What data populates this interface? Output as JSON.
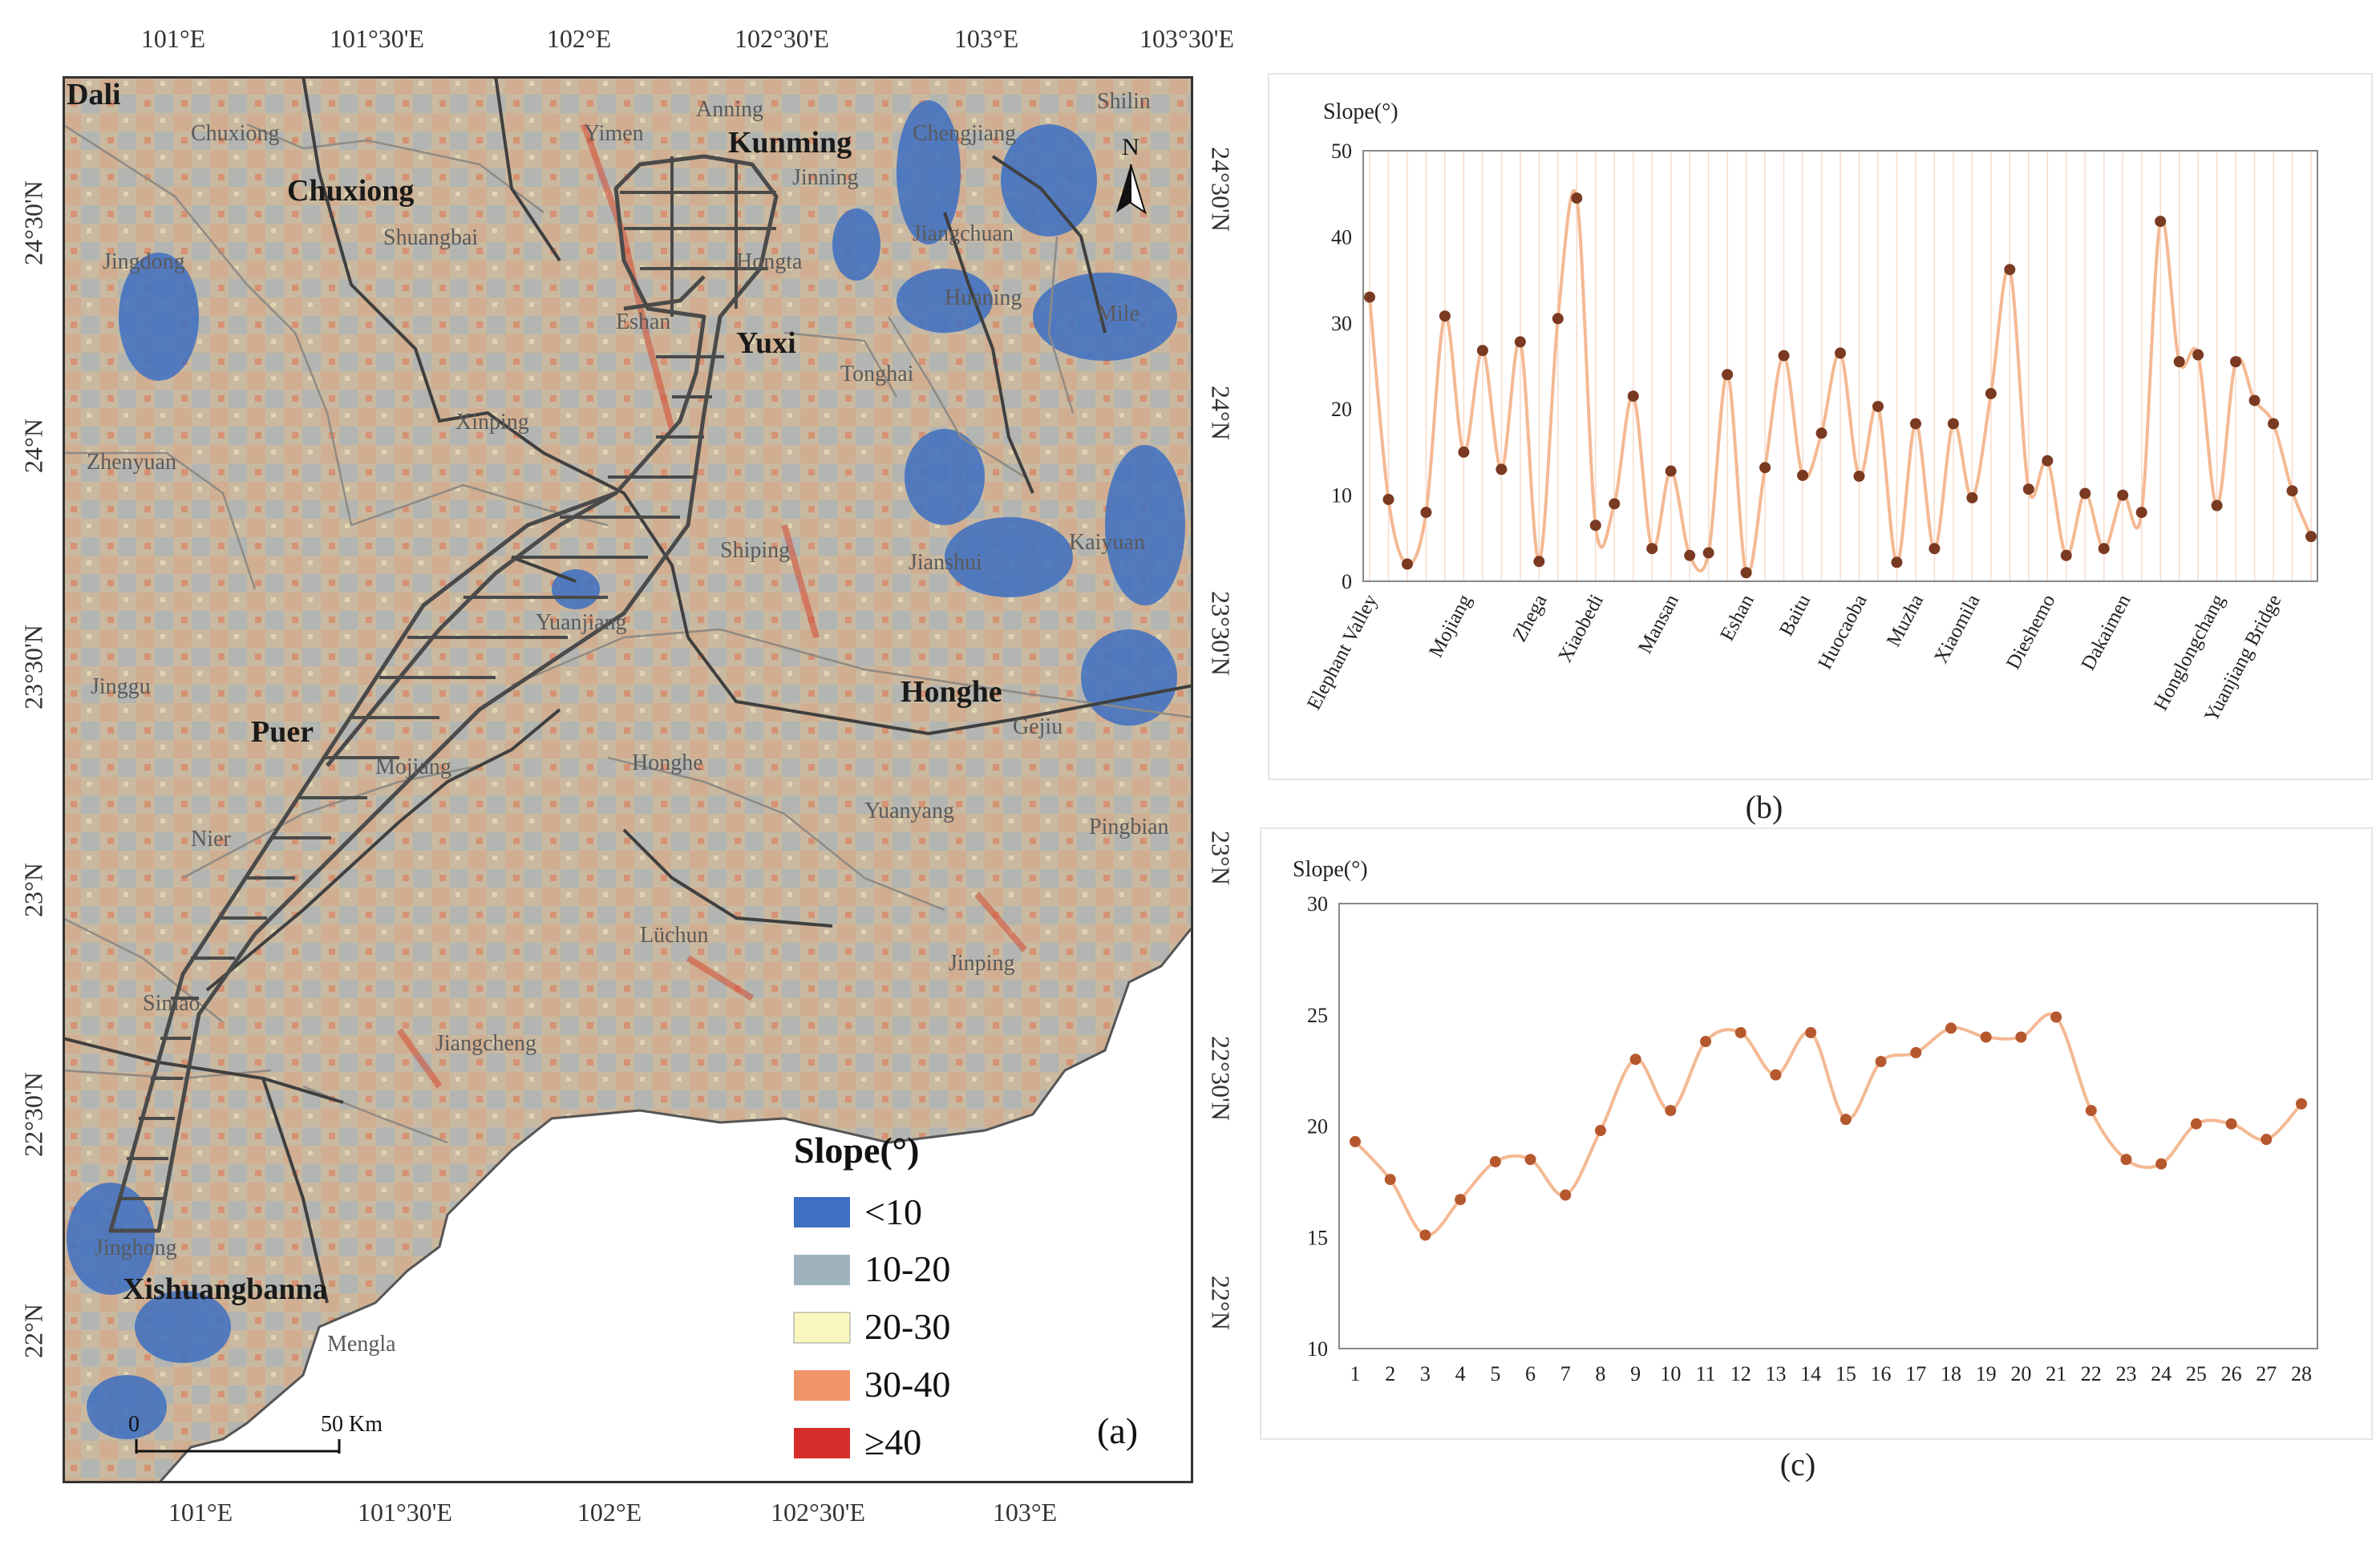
{
  "map": {
    "panel_label": "(a)",
    "lon_labels": [
      "101°E",
      "101°30'E",
      "102°E",
      "102°30'E",
      "103°E",
      "103°30'E"
    ],
    "lon_labels_bottom": [
      "101°E",
      "101°30'E",
      "102°E",
      "102°30'E",
      "103°E"
    ],
    "lat_labels_left": [
      "24°30'N",
      "24°N",
      "23°30'N",
      "23°N",
      "22°30'N",
      "22°N"
    ],
    "lat_labels_right": [
      "24°30'N",
      "24°N",
      "23°30'N",
      "23°N",
      "22°30'N",
      "22°N"
    ],
    "north_arrow": "N",
    "scalebar": {
      "start": "0",
      "end": "50 Km"
    },
    "legend": {
      "title": "Slope(°)",
      "items": [
        {
          "label": "<10",
          "color": "#3d6fc2"
        },
        {
          "label": "10-20",
          "color": "#9fb3bf"
        },
        {
          "label": "20-30",
          "color": "#faf6c0"
        },
        {
          "label": "30-40",
          "color": "#f0956a"
        },
        {
          "label": "≥40",
          "color": "#d42d2a"
        }
      ]
    },
    "region_labels": [
      "Chuxiong",
      "Kunming",
      "Yuxi",
      "Puer",
      "Honghe",
      "Xishuangbanna",
      "Dali"
    ],
    "county_labels": [
      "Chuxiong",
      "Yimen",
      "Anning",
      "Chengjiang",
      "Shilin",
      "Jinning",
      "Shuangbai",
      "Jiangchuan",
      "Jingdong",
      "Hongta",
      "Huaning",
      "Eshan",
      "Mile",
      "Tonghai",
      "Xinping",
      "Zhenyuan",
      "Kaiyuan",
      "Shiping",
      "Jianshui",
      "Yuanjiang",
      "Jinggu",
      "Gejiu",
      "Mojiang",
      "Honghe",
      "Yuanyang",
      "Pingbian",
      "Nier",
      "Lüchun",
      "Jinping",
      "Simao",
      "Jiangcheng",
      "Jinghong",
      "Mengla"
    ]
  },
  "chart_b": {
    "panel_label": "(b)",
    "chart_data": {
      "type": "line",
      "ylabel": "Slope(°)",
      "ylim": [
        0,
        50
      ],
      "yticks": [
        0,
        10,
        20,
        30,
        40,
        50
      ],
      "x_labels": [
        {
          "i": 1,
          "label": "Elephant Valley"
        },
        {
          "i": 6,
          "label": "Mojiang"
        },
        {
          "i": 10,
          "label": "Zhega"
        },
        {
          "i": 13,
          "label": "Xiaobedi"
        },
        {
          "i": 17,
          "label": "Mansan"
        },
        {
          "i": 21,
          "label": "Eshan"
        },
        {
          "i": 24,
          "label": "Baitu"
        },
        {
          "i": 27,
          "label": "Huocaoba"
        },
        {
          "i": 30,
          "label": "Muzha"
        },
        {
          "i": 33,
          "label": "Xiaomila"
        },
        {
          "i": 37,
          "label": "Dieshemo"
        },
        {
          "i": 41,
          "label": "Dakaimen"
        },
        {
          "i": 46,
          "label": "Honglongchang"
        },
        {
          "i": 49,
          "label": "Yuanjiang Bridge"
        }
      ],
      "values": [
        33,
        9.5,
        2,
        8,
        30.8,
        15,
        26.8,
        13,
        27.8,
        2.3,
        30.5,
        44.5,
        6.5,
        9,
        21.5,
        3.8,
        12.8,
        3,
        3.3,
        24,
        1,
        13.2,
        26.2,
        12.3,
        17.2,
        26.5,
        12.2,
        20.3,
        2.2,
        18.3,
        3.8,
        18.3,
        9.7,
        21.8,
        36.2,
        10.7,
        14,
        3,
        10.2,
        3.8,
        10,
        8,
        41.8,
        25.5,
        26.3,
        8.8,
        25.5,
        21,
        18.3,
        10.5,
        5.2
      ]
    }
  },
  "chart_c": {
    "panel_label": "(c)",
    "chart_data": {
      "type": "line",
      "ylabel": "Slope(°)",
      "ylim": [
        10,
        30
      ],
      "yticks": [
        10,
        15,
        20,
        25,
        30
      ],
      "x": [
        1,
        2,
        3,
        4,
        5,
        6,
        7,
        8,
        9,
        10,
        11,
        12,
        13,
        14,
        15,
        16,
        17,
        18,
        19,
        20,
        21,
        22,
        23,
        24,
        25,
        26,
        27,
        28
      ],
      "values": [
        19.3,
        17.6,
        15.1,
        16.7,
        18.4,
        18.5,
        16.9,
        19.8,
        23,
        20.7,
        23.8,
        24.2,
        22.3,
        24.2,
        20.3,
        22.9,
        23.3,
        24.4,
        24,
        24,
        24.9,
        20.7,
        18.5,
        18.3,
        20.1,
        20.1,
        19.4,
        21
      ]
    }
  }
}
